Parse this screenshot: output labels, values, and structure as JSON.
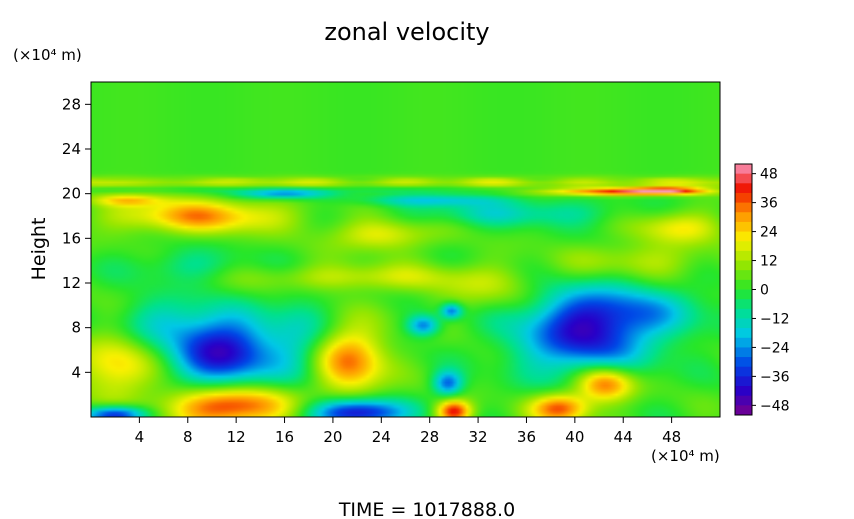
{
  "chart_data": {
    "type": "heatmap",
    "title": "zonal velocity",
    "ylabel": "Height",
    "y_unit_label": "(×10⁴ m)",
    "x_unit_label": "(×10⁴ m)",
    "time_label": "TIME = 1017888.0",
    "xlim": [
      0,
      52
    ],
    "ylim": [
      0,
      30
    ],
    "x_ticks": [
      4,
      8,
      12,
      16,
      20,
      24,
      28,
      32,
      36,
      40,
      44,
      48
    ],
    "y_ticks": [
      4,
      8,
      12,
      16,
      20,
      24,
      28
    ],
    "colorbar": {
      "min": -52,
      "max": 52,
      "ticks": [
        48,
        36,
        24,
        12,
        0,
        -12,
        -24,
        -36,
        -48
      ],
      "tick_labels": [
        "48",
        "36",
        "24",
        "12",
        "0",
        "−12",
        "−24",
        "−36",
        "−48"
      ]
    },
    "background_value": 2,
    "features": [
      {
        "x": 11.0,
        "y": 5.8,
        "rx": 4.0,
        "ry": 3.2,
        "v": -44
      },
      {
        "x": 11.5,
        "y": 1.0,
        "rx": 5.0,
        "ry": 1.8,
        "v": 42
      },
      {
        "x": 2.0,
        "y": 0.2,
        "rx": 2.5,
        "ry": 0.8,
        "v": -44
      },
      {
        "x": 21.5,
        "y": 5.0,
        "rx": 2.8,
        "ry": 3.0,
        "v": 32
      },
      {
        "x": 22.0,
        "y": 0.4,
        "rx": 3.8,
        "ry": 1.2,
        "v": -46
      },
      {
        "x": 30.0,
        "y": 0.5,
        "rx": 1.4,
        "ry": 1.0,
        "v": 40
      },
      {
        "x": 29.5,
        "y": 3.0,
        "rx": 1.2,
        "ry": 1.1,
        "v": -30
      },
      {
        "x": 27.5,
        "y": 8.2,
        "rx": 1.3,
        "ry": 0.9,
        "v": -28
      },
      {
        "x": 29.8,
        "y": 9.5,
        "rx": 0.9,
        "ry": 0.7,
        "v": -30
      },
      {
        "x": 40.8,
        "y": 7.5,
        "rx": 5.5,
        "ry": 3.8,
        "v": -40
      },
      {
        "x": 42.5,
        "y": 3.0,
        "rx": 2.4,
        "ry": 1.6,
        "v": 38
      },
      {
        "x": 38.8,
        "y": 0.8,
        "rx": 2.4,
        "ry": 1.3,
        "v": 36
      },
      {
        "x": 45.5,
        "y": 9.5,
        "rx": 6.0,
        "ry": 2.2,
        "v": -15
      },
      {
        "x": 2.0,
        "y": 4.5,
        "rx": 3.0,
        "ry": 3.0,
        "v": 22
      },
      {
        "x": 17.0,
        "y": 7.0,
        "rx": 2.5,
        "ry": 4.0,
        "v": -14
      },
      {
        "x": 6.0,
        "y": 8.5,
        "rx": 4.0,
        "ry": 2.2,
        "v": -14
      },
      {
        "x": 9.0,
        "y": 18.0,
        "rx": 7.0,
        "ry": 1.5,
        "v": 28
      },
      {
        "x": 24.0,
        "y": 16.3,
        "rx": 4.0,
        "ry": 1.4,
        "v": 18
      },
      {
        "x": 35.0,
        "y": 18.3,
        "rx": 9.0,
        "ry": 1.2,
        "v": -14
      },
      {
        "x": 48.5,
        "y": 17.0,
        "rx": 3.5,
        "ry": 1.5,
        "v": 18
      },
      {
        "x": 22.0,
        "y": 12.5,
        "rx": 9.0,
        "ry": 1.2,
        "v": 14
      },
      {
        "x": 45.0,
        "y": 14.0,
        "rx": 6.0,
        "ry": 1.6,
        "v": 12
      },
      {
        "x": 8.0,
        "y": 13.5,
        "rx": 5.0,
        "ry": 1.5,
        "v": -10
      },
      {
        "x": 33.0,
        "y": 11.5,
        "rx": 5.0,
        "ry": 2.0,
        "v": 10
      },
      {
        "x": 44.0,
        "y": 20.2,
        "rx": 6.0,
        "ry": 0.35,
        "v": 44
      },
      {
        "x": 48.0,
        "y": 20.3,
        "rx": 3.0,
        "ry": 0.3,
        "v": 26
      },
      {
        "x": 16.0,
        "y": 20.0,
        "rx": 4.0,
        "ry": 0.45,
        "v": -28
      },
      {
        "x": 28.0,
        "y": 19.4,
        "rx": 6.0,
        "ry": 0.5,
        "v": -16
      },
      {
        "x": 3.0,
        "y": 19.4,
        "rx": 3.0,
        "ry": 0.5,
        "v": 18
      }
    ],
    "bands": [
      {
        "y": 21.0,
        "hw": 0.5,
        "v": 14
      },
      {
        "y": 20.4,
        "hw": 0.3,
        "v": -6
      }
    ]
  }
}
